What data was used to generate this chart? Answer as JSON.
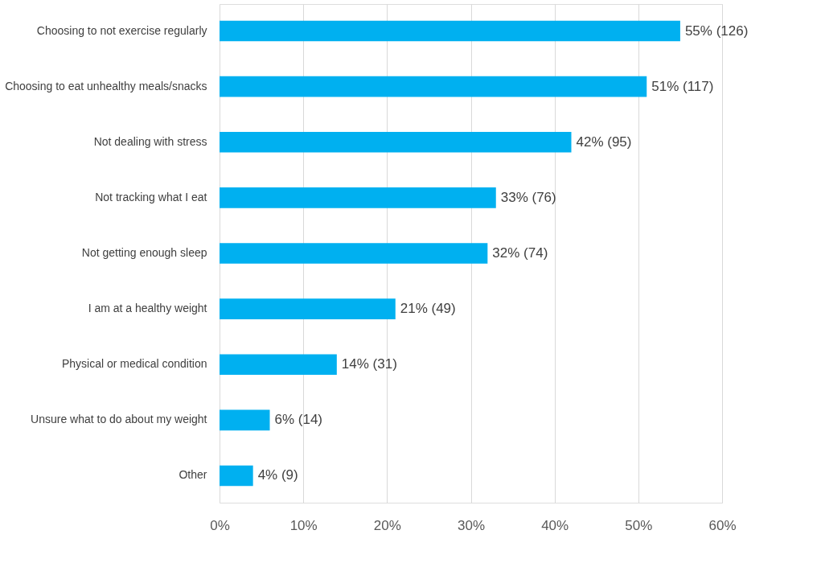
{
  "chart_data": {
    "type": "bar",
    "orientation": "horizontal",
    "categories": [
      "Choosing to not exercise regularly",
      "Choosing to eat unhealthy meals/snacks",
      "Not dealing with stress",
      "Not tracking what I eat",
      "Not getting enough sleep",
      "I am at a healthy weight",
      "Physical or medical condition",
      "Unsure what to do about my weight",
      "Other"
    ],
    "values": [
      55,
      51,
      42,
      33,
      32,
      21,
      14,
      6,
      4
    ],
    "value_labels": [
      "55%  (126)",
      "51%  (117)",
      "42%  (95)",
      "33%  (76)",
      "32%  (74)",
      "21%  (49)",
      "14%  (31)",
      "6%  (14)",
      "4%  (9)"
    ],
    "color": "#00b0f0",
    "xlim": [
      0,
      60
    ],
    "xticks": [
      {
        "value": 0,
        "label": "0%"
      },
      {
        "value": 10,
        "label": "10%"
      },
      {
        "value": 20,
        "label": "20%"
      },
      {
        "value": 30,
        "label": "30%"
      },
      {
        "value": 40,
        "label": "40%"
      },
      {
        "value": 50,
        "label": "50%"
      },
      {
        "value": 60,
        "label": "60%"
      }
    ],
    "grid": "x"
  }
}
